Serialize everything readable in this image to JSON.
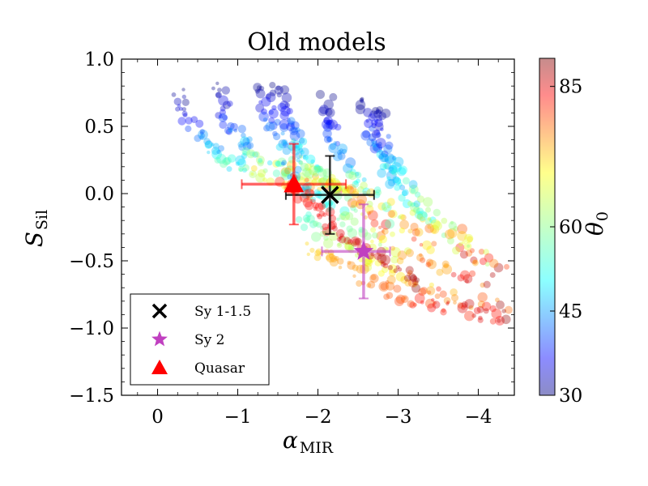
{
  "chart_data": {
    "type": "scatter",
    "title": "Old models",
    "xlabel": {
      "main": "α",
      "sub": "MIR"
    },
    "ylabel": {
      "main": "S",
      "sub": "Sil"
    },
    "xlim": [
      0.45,
      -4.45
    ],
    "ylim": [
      -1.5,
      1.0
    ],
    "x_ticks": [
      0,
      -1,
      -2,
      -3,
      -4
    ],
    "x_tick_labels": [
      "0",
      "−1",
      "−2",
      "−3",
      "−4"
    ],
    "y_ticks": [
      1.0,
      0.5,
      0.0,
      -0.5,
      -1.0,
      -1.5
    ],
    "y_tick_labels": [
      "1.0",
      "0.5",
      "0.0",
      "−0.5",
      "−1.0",
      "−1.5"
    ],
    "colorbar": {
      "label": "θ",
      "label_sub": "0",
      "range": [
        30,
        90
      ],
      "ticks": [
        30,
        45,
        60,
        85
      ],
      "tick_labels": [
        "30",
        "45",
        "60",
        "85"
      ],
      "colormap": "jet"
    },
    "model_tracks": [
      {
        "theta_start": 30,
        "points": [
          [
            -0.25,
            0.74
          ],
          [
            -0.4,
            0.55
          ],
          [
            -0.6,
            0.38
          ],
          [
            -0.85,
            0.26
          ],
          [
            -1.2,
            0.17
          ],
          [
            -1.6,
            0.1
          ],
          [
            -2.0,
            0.0
          ]
        ]
      },
      {
        "theta_start": 30,
        "points": [
          [
            -0.75,
            0.8
          ],
          [
            -0.85,
            0.58
          ],
          [
            -1.0,
            0.42
          ],
          [
            -1.2,
            0.3
          ],
          [
            -1.5,
            0.2
          ],
          [
            -1.9,
            0.1
          ],
          [
            -2.3,
            0.0
          ]
        ]
      },
      {
        "theta_start": 30,
        "points": [
          [
            -1.3,
            0.8
          ],
          [
            -1.38,
            0.6
          ],
          [
            -1.5,
            0.45
          ],
          [
            -1.7,
            0.32
          ],
          [
            -1.95,
            0.18
          ],
          [
            -2.3,
            0.05
          ],
          [
            -2.7,
            -0.1
          ]
        ]
      },
      {
        "theta_start": 30,
        "points": [
          [
            -1.5,
            0.82
          ],
          [
            -1.6,
            0.6
          ],
          [
            -1.72,
            0.42
          ],
          [
            -1.9,
            0.25
          ],
          [
            -2.15,
            0.08
          ],
          [
            -2.5,
            -0.1
          ],
          [
            -2.9,
            -0.3
          ]
        ]
      },
      {
        "theta_start": 30,
        "points": [
          [
            -2.1,
            0.7
          ],
          [
            -2.15,
            0.5
          ],
          [
            -2.25,
            0.32
          ],
          [
            -2.45,
            0.15
          ],
          [
            -2.7,
            -0.02
          ],
          [
            -3.0,
            -0.2
          ],
          [
            -3.4,
            -0.4
          ]
        ]
      },
      {
        "theta_start": 30,
        "points": [
          [
            -2.6,
            0.72
          ],
          [
            -2.65,
            0.5
          ],
          [
            -2.75,
            0.3
          ],
          [
            -2.95,
            0.1
          ],
          [
            -3.2,
            -0.1
          ],
          [
            -3.55,
            -0.3
          ],
          [
            -4.0,
            -0.5
          ]
        ]
      },
      {
        "theta_start": 30,
        "points": [
          [
            -2.75,
            0.65
          ],
          [
            -2.8,
            0.45
          ],
          [
            -2.9,
            0.25
          ],
          [
            -3.1,
            0.05
          ],
          [
            -3.4,
            -0.15
          ],
          [
            -3.8,
            -0.35
          ],
          [
            -4.3,
            -0.55
          ]
        ]
      },
      {
        "theta_start": 45,
        "points": [
          [
            -1.6,
            0.2
          ],
          [
            -1.9,
            0.0
          ],
          [
            -2.2,
            -0.15
          ],
          [
            -2.6,
            -0.3
          ],
          [
            -3.0,
            -0.45
          ],
          [
            -3.5,
            -0.55
          ],
          [
            -4.1,
            -0.65
          ]
        ]
      },
      {
        "theta_start": 55,
        "points": [
          [
            -1.8,
            -0.15
          ],
          [
            -2.1,
            -0.3
          ],
          [
            -2.4,
            -0.42
          ],
          [
            -2.8,
            -0.55
          ],
          [
            -3.2,
            -0.68
          ],
          [
            -3.7,
            -0.78
          ],
          [
            -4.3,
            -0.85
          ]
        ]
      },
      {
        "theta_start": 70,
        "points": [
          [
            -1.9,
            -0.4
          ],
          [
            -2.2,
            -0.5
          ],
          [
            -2.55,
            -0.62
          ],
          [
            -2.95,
            -0.74
          ],
          [
            -3.4,
            -0.82
          ],
          [
            -3.9,
            -0.88
          ],
          [
            -4.4,
            -0.92
          ]
        ]
      },
      {
        "theta_start": 80,
        "points": [
          [
            -1.6,
            0.1
          ],
          [
            -1.75,
            0.0
          ],
          [
            -1.95,
            -0.1
          ],
          [
            -2.2,
            -0.25
          ],
          [
            -2.5,
            -0.4
          ],
          [
            -2.9,
            -0.55
          ],
          [
            -3.3,
            -0.7
          ]
        ]
      }
    ],
    "observations": [
      {
        "name": "Sy 1-1.5",
        "marker": "x",
        "color": "#000000",
        "x": -2.15,
        "y": -0.01,
        "xerr": [
          0.55,
          0.55
        ],
        "yerr": [
          0.29,
          0.29
        ]
      },
      {
        "name": "Sy 2",
        "marker": "star",
        "color": "#c040c0",
        "x": -2.57,
        "y": -0.43,
        "xerr": [
          0.52,
          0.33
        ],
        "yerr": [
          0.35,
          0.35
        ]
      },
      {
        "name": "Quasar",
        "marker": "triangle",
        "color": "#ff0000",
        "x": -1.7,
        "y": 0.07,
        "xerr": [
          0.65,
          0.65
        ],
        "yerr": [
          0.3,
          0.3
        ]
      }
    ],
    "legend": {
      "placement": "lower-left",
      "entries": [
        "Sy 1-1.5",
        "Sy 2",
        "Quasar"
      ]
    }
  }
}
